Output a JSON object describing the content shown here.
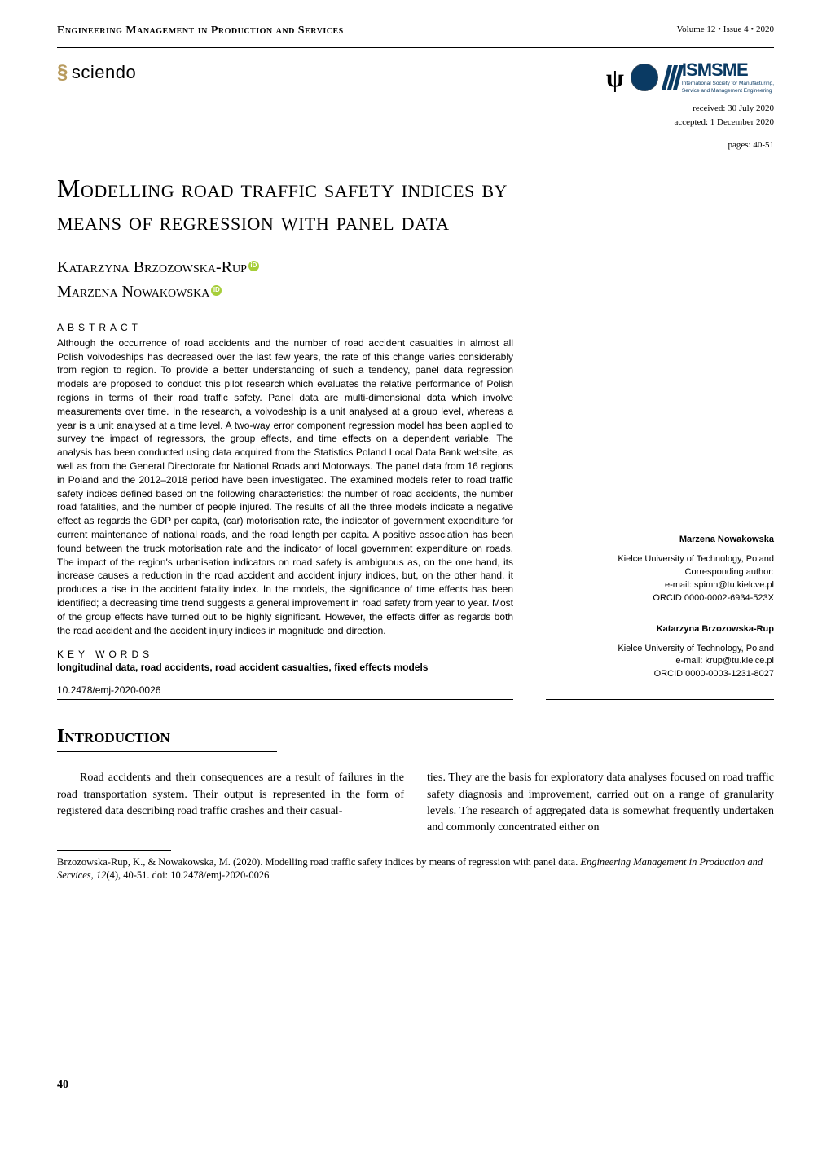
{
  "header": {
    "journal_name": "Engineering Management in Production and Services",
    "volume_info": "Volume 12 • Issue 4 • 2020"
  },
  "logos": {
    "sciendo_label": "sciendo",
    "ismsme_label": "ISMSME",
    "ismsme_sub1": "International Society for Manufacturing,",
    "ismsme_sub2": "Service and Management Engineering",
    "ismsme_stripe_color": "#0a3a63"
  },
  "dates": {
    "received": "received: 30 July 2020",
    "accepted": "accepted: 1 December 2020",
    "pages": "pages:   40-51"
  },
  "article": {
    "title": "Modelling road traffic safety indices by means of regression with panel data",
    "author1": "Katarzyna Brzozowska-Rup",
    "author2": "Marzena Nowakowska"
  },
  "abstract": {
    "heading": "ABSTRACT",
    "text": "Although the occurrence of road accidents and the number of road accident casualties in almost all Polish voivodeships has decreased over the last few years, the rate of this change varies considerably from region to region. To provide a better understanding of such a tendency, panel data regression models are proposed to conduct this pilot research which evaluates the relative performance of Polish regions in terms of their road traffic safety. Panel data are multi-dimensional data which involve measurements over time. In the research, a voivodeship is a unit analysed at a group level, whereas a year is a unit analysed at a time level. A two-way error component regression model has been applied to survey the impact of regressors, the group effects, and time effects on a dependent variable. The analysis has been conducted using data acquired from the Statistics Poland Local Data Bank website, as well as from the General Directorate for National Roads and Motorways. The panel data from 16 regions in Poland and the 2012–2018 period have been investigated. The examined models refer to road traffic safety indices defined based on the following characteristics: the number of road accidents, the number road fatalities, and the number of people injured. The results of all the three models indicate a negative effect as regards the GDP per capita, (car) motorisation rate, the indicator of government expenditure for current maintenance of national roads, and the road length per capita. A positive association has been found between the truck motorisation rate and the indicator of local government expenditure on roads. The impact of the region's urbanisation indicators on road safety is ambiguous as, on the one hand, its increase causes a reduction in the road accident and accident injury indices, but, on the other hand, it produces a rise in the accident fatality index. In the models, the significance of time effects has been identified; a decreasing time trend suggests a general improvement in road safety from year to year. Most of the group effects have turned out to be highly significant. However, the effects differ as regards both the road accident and the accident injury indices in magnitude and direction."
  },
  "keywords": {
    "heading": "KEY WORDS",
    "text": "longitudinal data, road accidents, road accident casualties, fixed effects models"
  },
  "doi": "10.2478/emj-2020-0026",
  "author_info": {
    "author2": {
      "name": "Marzena Nowakowska",
      "affiliation": "Kielce University of Technology, Poland",
      "role": "Corresponding author:",
      "email": "e-mail: spimn@tu.kielcve.pl",
      "orcid": "ORCID 0000-0002-6934-523X"
    },
    "author1": {
      "name": "Katarzyna Brzozowska-Rup",
      "affiliation": "Kielce University of Technology, Poland",
      "email": "e-mail: krup@tu.kielce.pl",
      "orcid": "ORCID 0000-0003-1231-8027"
    }
  },
  "intro": {
    "heading": "Introduction",
    "col1": "Road accidents and their consequences are a result of failures in the road transportation system. Their output is represented in the form of registered data describing road traffic crashes and their casual-",
    "col2": "ties. They are the basis for exploratory data analyses focused on road traffic safety diagnosis and improvement, carried out on a range of granularity levels. The research of aggregated data is somewhat frequently undertaken and commonly concentrated either on"
  },
  "citation": {
    "text_prefix": "Brzozowska-Rup, K., & Nowakowska, M. (2020). Modelling road traffic safety indices by means of regression with panel data. ",
    "journal_italic": "Engineering Management in Production and Services, 12",
    "text_suffix": "(4), 40-51. doi: 10.2478/emj-2020-0026"
  },
  "page_number": "40"
}
